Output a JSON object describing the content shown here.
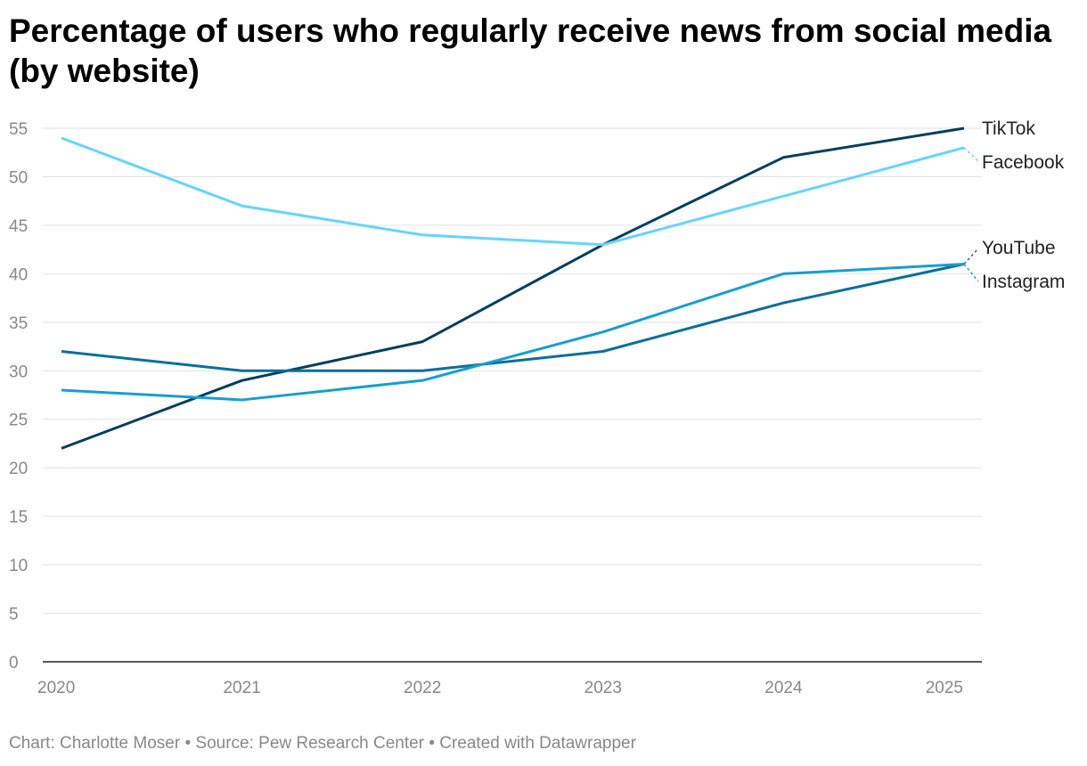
{
  "chart_data": {
    "type": "line",
    "title": "Percentage of users who regularly receive news from social media (by website)",
    "x": [
      2020,
      2021,
      2022,
      2023,
      2024,
      2025
    ],
    "xticks": [
      "2020",
      "2021",
      "2022",
      "2023",
      "2024",
      "2025"
    ],
    "ylim": [
      0,
      55
    ],
    "yticks": [
      "0",
      "5",
      "10",
      "15",
      "20",
      "25",
      "30",
      "35",
      "40",
      "45",
      "50",
      "55"
    ],
    "grid": true,
    "legend": "direct labels at right end of lines",
    "series": [
      {
        "name": "TikTok",
        "color": "#003f5c",
        "values": [
          22,
          29,
          33,
          43,
          52,
          55
        ]
      },
      {
        "name": "Facebook",
        "color": "#66d4ff",
        "values": [
          54,
          47,
          44,
          43,
          48,
          53
        ]
      },
      {
        "name": "YouTube",
        "color": "#0a6e9c",
        "values": [
          32,
          30,
          30,
          32,
          37,
          41
        ]
      },
      {
        "name": "Instagram",
        "color": "#169fd0",
        "values": [
          28,
          27,
          29,
          34,
          40,
          41
        ]
      }
    ]
  },
  "footer": "Chart: Charlotte Moser • Source: Pew Research Center • Created with Datawrapper"
}
